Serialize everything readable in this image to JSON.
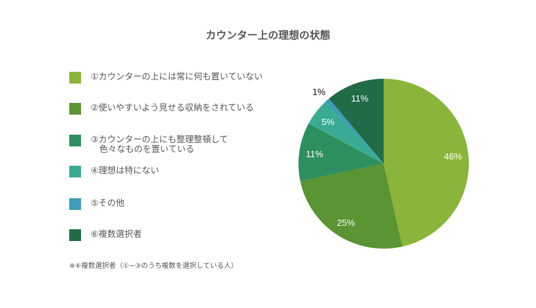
{
  "title": "カウンター上の理想の状態",
  "footnote": "※⑥複数選択者（①~③のうち複数を選択している人）",
  "legend": [
    {
      "label": "①カウンターの上には常に何も置いていない",
      "color": "#8ab53a"
    },
    {
      "label": "②使いやすいよう見せる収納をされている",
      "color": "#5a9433"
    },
    {
      "label": "③カウンターの上にも整理整頓して\n　色々なものを置いている",
      "color": "#2e8f5e"
    },
    {
      "label": "④理想は特にない",
      "color": "#3aab93"
    },
    {
      "label": "⑤その他",
      "color": "#3d9cb8"
    },
    {
      "label": "⑥複数選択者",
      "color": "#216b47"
    }
  ],
  "chart_data": {
    "type": "pie",
    "title": "カウンター上の理想の状態",
    "categories": [
      "①カウンターの上には常に何も置いていない",
      "②使いやすいよう見せる収納をされている",
      "③カウンターの上にも整理整頓して色々なものを置いている",
      "④理想は特にない",
      "⑤その他",
      "⑥複数選択者"
    ],
    "values": [
      46,
      25,
      11,
      5,
      1,
      11
    ],
    "labels": [
      "46%",
      "25%",
      "11%",
      "5%",
      "1%",
      "11%"
    ],
    "colors": [
      "#8ab53a",
      "#5a9433",
      "#2e8f5e",
      "#3aab93",
      "#3d9cb8",
      "#216b47"
    ],
    "label_colors": [
      "#ffffff",
      "#ffffff",
      "#ffffff",
      "#ffffff",
      "#000000",
      "#ffffff"
    ],
    "start": "12 o'clock",
    "direction": "clockwise",
    "legend_position": "left"
  }
}
